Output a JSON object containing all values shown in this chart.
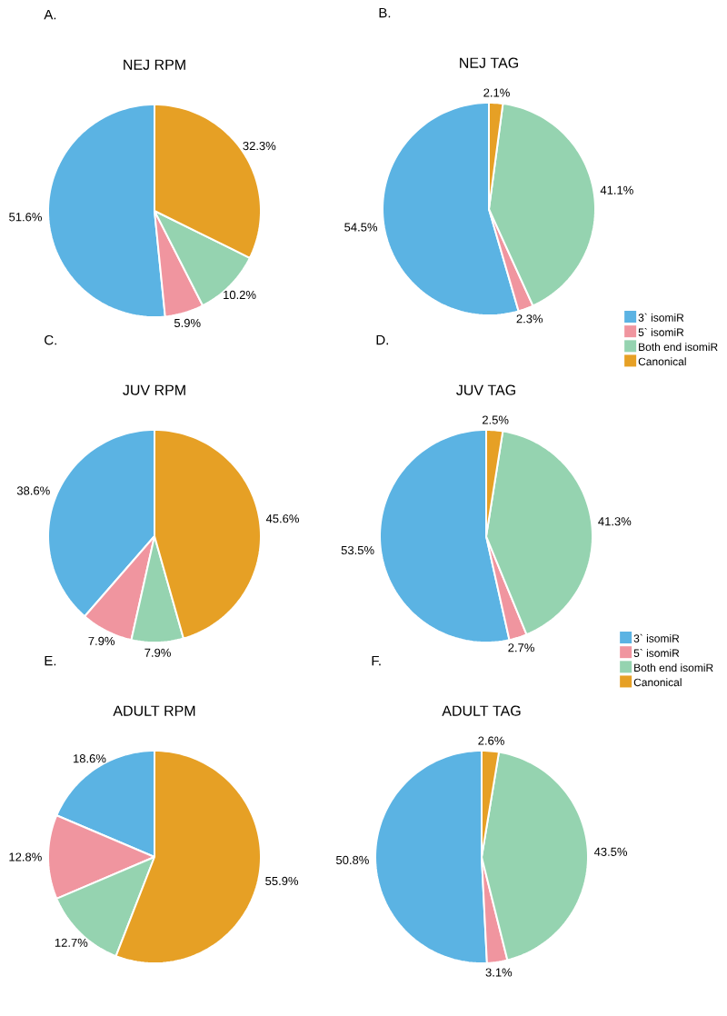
{
  "chart_data": [
    {
      "type": "pie",
      "title": "NEJ RPM",
      "annotations": [
        "A."
      ],
      "categories": [
        null,
        null,
        null,
        null
      ],
      "values": [
        51.6,
        5.9,
        10.2,
        32.3
      ],
      "colors": [
        "#5bb3e3",
        "#f0959f",
        "#95d3b0",
        "#e6a025"
      ],
      "value_labels": [
        "51.6%",
        "5.9%",
        "10.2%",
        "32.3%"
      ],
      "legend": false
    },
    {
      "type": "pie",
      "title": "NEJ TAG",
      "annotations": [
        "B."
      ],
      "categories": [
        null,
        null,
        null,
        null
      ],
      "values": [
        54.5,
        2.3,
        41.1,
        2.1
      ],
      "colors": [
        "#5bb3e3",
        "#f0959f",
        "#95d3b0",
        "#e6a025"
      ],
      "value_labels": [
        "54.5%",
        "2.3%",
        "41.1%",
        "2.1%"
      ],
      "legend": false
    },
    {
      "type": "pie",
      "title": "JUV RPM",
      "annotations": [
        "C."
      ],
      "categories": [
        null,
        null,
        null,
        null
      ],
      "values": [
        38.6,
        7.9,
        7.9,
        45.6
      ],
      "colors": [
        "#5bb3e3",
        "#f0959f",
        "#95d3b0",
        "#e6a025"
      ],
      "value_labels": [
        "38.6%",
        "7.9%",
        "7.9%",
        "45.6%"
      ],
      "legend": false
    },
    {
      "type": "pie",
      "title": "JUV TAG",
      "annotations": [
        "D."
      ],
      "categories": [
        "3` isomiR",
        "5` isomiR",
        "Both end isomiR",
        "Canonical"
      ],
      "values": [
        53.5,
        2.7,
        41.3,
        2.5
      ],
      "colors": [
        "#5bb3e3",
        "#f0959f",
        "#95d3b0",
        "#e6a025"
      ],
      "value_labels": [
        "53.5%",
        "2.7%",
        "41.3%",
        "2.5%"
      ],
      "legend": "top right"
    },
    {
      "type": "pie",
      "title": "ADULT RPM",
      "annotations": [
        "E."
      ],
      "categories": [
        null,
        null,
        null,
        null
      ],
      "values": [
        18.6,
        12.8,
        12.7,
        55.9
      ],
      "colors": [
        "#5bb3e3",
        "#f0959f",
        "#95d3b0",
        "#e6a025"
      ],
      "value_labels": [
        "18.6%",
        "12.8%",
        "12.7%",
        "55.9%"
      ],
      "legend": false
    },
    {
      "type": "pie",
      "title": "ADULT TAG",
      "annotations": [
        "F."
      ],
      "categories": [
        "3` isomiR",
        "5` isomiR",
        "Both end isomiR",
        "Canonical"
      ],
      "values": [
        50.8,
        3.1,
        43.5,
        2.6
      ],
      "colors": [
        "#5bb3e3",
        "#f0959f",
        "#95d3b0",
        "#e6a025"
      ],
      "value_labels": [
        "50.8%",
        "3.1%",
        "43.5%",
        "2.6%"
      ],
      "legend": "top right"
    }
  ]
}
